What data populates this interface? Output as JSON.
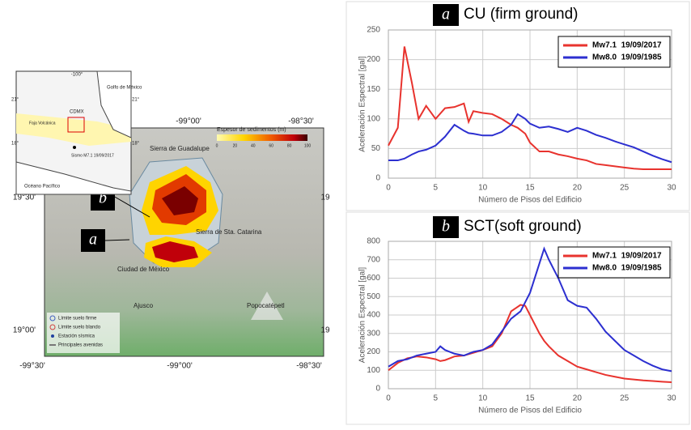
{
  "chart_data": [
    {
      "type": "line",
      "badge": "a",
      "title": "CU (firm ground)",
      "x_label": "Número de Pisos del Edificio",
      "y_label": "Aceleración Espectral [gal]",
      "x": [
        0,
        1,
        1.7,
        2.5,
        3.2,
        4,
        5,
        6,
        7,
        8,
        8.5,
        9,
        10,
        11,
        12,
        13,
        13.7,
        14.5,
        15,
        16,
        17,
        18,
        19,
        20,
        21,
        22,
        23,
        24,
        25,
        26,
        27,
        28,
        29,
        30
      ],
      "series": [
        {
          "name": "Mw7.1  19/09/2017",
          "color": "#e8332e",
          "values": [
            55,
            85,
            222,
            160,
            100,
            122,
            100,
            118,
            120,
            126,
            95,
            113,
            110,
            108,
            100,
            90,
            85,
            75,
            60,
            45,
            45,
            40,
            37,
            33,
            30,
            24,
            22,
            20,
            18,
            16,
            15,
            15,
            15,
            15
          ]
        },
        {
          "name": "Mw8.0  19/09/1985",
          "color": "#2c2fd0",
          "values": [
            30,
            30,
            33,
            40,
            45,
            48,
            55,
            70,
            90,
            80,
            76,
            75,
            72,
            72,
            78,
            90,
            108,
            100,
            92,
            85,
            87,
            83,
            78,
            85,
            80,
            73,
            68,
            62,
            57,
            52,
            45,
            38,
            32,
            27
          ]
        }
      ],
      "xlim": [
        0,
        30
      ],
      "xticks": [
        0,
        5,
        10,
        15,
        20,
        25,
        30
      ],
      "ylim": [
        0,
        250
      ],
      "yticks": [
        0,
        50,
        100,
        150,
        200,
        250
      ],
      "grid": true,
      "legend": "upper right"
    },
    {
      "type": "line",
      "badge": "b",
      "title": "SCT(soft ground)",
      "x_label": "Número de Pisos del Edificio",
      "y_label": "Aceleración Espectral [gal]",
      "x": [
        0,
        1,
        2,
        3,
        4,
        5,
        5.5,
        6,
        7,
        8,
        9,
        10,
        11,
        12,
        13,
        14,
        14.5,
        15,
        16,
        16.5,
        17,
        18,
        19,
        20,
        21,
        22,
        23,
        24,
        25,
        26,
        27,
        28,
        29,
        30
      ],
      "series": [
        {
          "name": "Mw7.1  19/09/2017",
          "color": "#e8332e",
          "values": [
            100,
            140,
            165,
            175,
            170,
            160,
            150,
            155,
            175,
            180,
            195,
            210,
            230,
            300,
            420,
            455,
            450,
            400,
            300,
            260,
            230,
            180,
            150,
            120,
            105,
            90,
            75,
            65,
            55,
            50,
            45,
            42,
            38,
            35
          ]
        },
        {
          "name": "Mw8.0  19/09/1985",
          "color": "#2c2fd0",
          "values": [
            120,
            150,
            160,
            180,
            190,
            200,
            230,
            210,
            190,
            180,
            200,
            210,
            240,
            310,
            380,
            420,
            470,
            520,
            680,
            760,
            700,
            600,
            480,
            450,
            440,
            380,
            310,
            260,
            210,
            180,
            150,
            125,
            105,
            95
          ]
        }
      ],
      "xlim": [
        0,
        30
      ],
      "xticks": [
        0,
        5,
        10,
        15,
        20,
        25,
        30
      ],
      "ylim": [
        0,
        800
      ],
      "yticks": [
        0,
        100,
        200,
        300,
        400,
        500,
        600,
        700,
        800
      ],
      "grid": true,
      "legend": "upper right"
    }
  ],
  "map": {
    "top_coords": [
      "-99°00'",
      "-98°30'"
    ],
    "bottom_coords": [
      "-99°30'",
      "-99°00'",
      "-98°30'"
    ],
    "left_coords": [
      "19°30'",
      "19°00'"
    ],
    "right_coords": [
      "19",
      "19"
    ],
    "places": [
      "Sierra de Guadalupe",
      "Sierra de Sta. Catarina",
      "Ciudad de México",
      "Ajusco",
      "Popocatépetl"
    ],
    "colorbar": {
      "title": "Espesor de sedimentos (m)",
      "ticks": [
        0,
        20,
        40,
        60,
        80,
        100
      ]
    },
    "legend": [
      "Límite suelo firme",
      "Límite suelo blando",
      "Estación sísmica",
      "Principales avenidas"
    ],
    "badges": [
      "b",
      "a"
    ],
    "inset": {
      "coord_top": "-100°",
      "coord_left_top": "21°",
      "coord_right_top": "21°",
      "coord_left_bottom": "18°",
      "coord_right_bottom": "18°",
      "gulf": "Golfo de México",
      "ocean": "Océano Pacífico",
      "city": "CDMX",
      "belt": "Faja Volcánica",
      "quake": "Sismo M7.1 19/09/2017"
    }
  }
}
